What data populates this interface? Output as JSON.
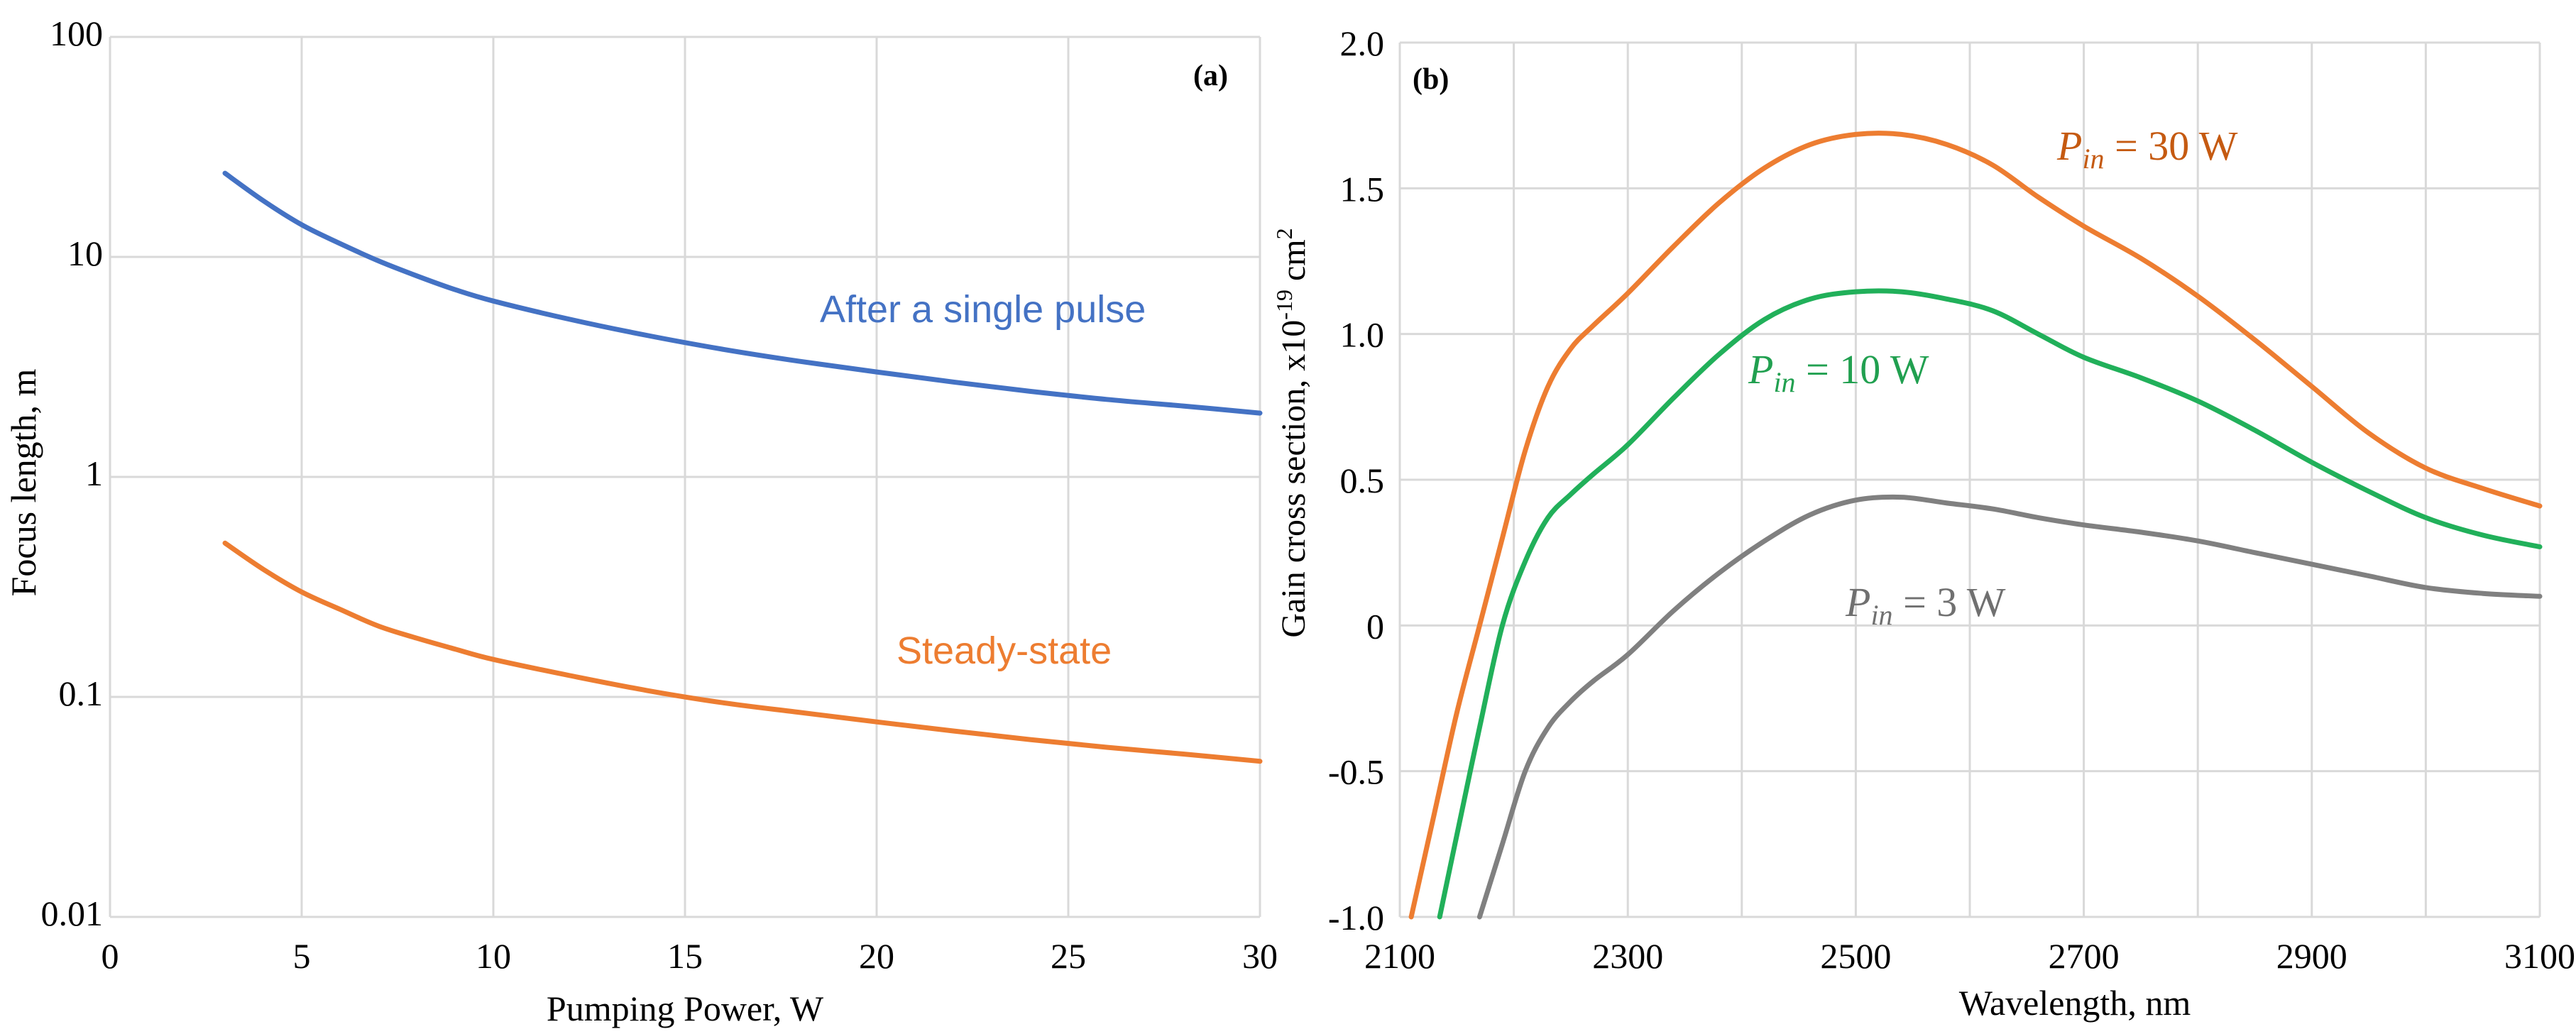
{
  "chart_data": [
    {
      "panel_label": "(a)",
      "type": "line",
      "xlabel": "Pumping Power, W",
      "ylabel": "Focus length, m",
      "xlim": [
        0,
        30
      ],
      "ylim": [
        0.01,
        100
      ],
      "yscale": "log",
      "x_ticks": [
        0,
        5,
        10,
        15,
        20,
        25,
        30
      ],
      "x_tick_labels": [
        "0",
        "5",
        "10",
        "15",
        "20",
        "25",
        "30"
      ],
      "y_ticks": [
        0.01,
        0.1,
        1,
        10,
        100
      ],
      "y_tick_labels": [
        "0.01",
        "0.1",
        "1",
        "10",
        "100"
      ],
      "grid": true,
      "series": [
        {
          "label": "After a single pulse",
          "color": "#4472C4",
          "x": [
            3,
            4,
            5,
            6,
            7,
            8,
            9,
            10,
            12,
            14,
            16,
            18,
            20,
            22,
            24,
            26,
            28,
            30
          ],
          "y": [
            24,
            18,
            14,
            11.5,
            9.6,
            8.2,
            7.1,
            6.3,
            5.2,
            4.4,
            3.8,
            3.35,
            3.0,
            2.7,
            2.45,
            2.25,
            2.1,
            1.95
          ]
        },
        {
          "label": "Steady-state",
          "color": "#ED7D31",
          "x": [
            3,
            4,
            5,
            6,
            7,
            8,
            9,
            10,
            12,
            14,
            16,
            18,
            20,
            22,
            24,
            26,
            28,
            30
          ],
          "y": [
            0.5,
            0.38,
            0.3,
            0.25,
            0.21,
            0.185,
            0.165,
            0.148,
            0.125,
            0.107,
            0.094,
            0.085,
            0.077,
            0.07,
            0.064,
            0.059,
            0.055,
            0.051
          ]
        }
      ]
    },
    {
      "panel_label": "(b)",
      "type": "line",
      "xlabel": "Wavelength, nm",
      "ylabel_main": "Gain cross section, x10",
      "ylabel_sup_exp": "-19",
      "ylabel_unit": " cm",
      "ylabel_sup_unit": "2",
      "xlim": [
        2100,
        3100
      ],
      "ylim": [
        -1.0,
        2.0
      ],
      "x_ticks": [
        2100,
        2300,
        2500,
        2700,
        2900,
        3100
      ],
      "x_tick_labels": [
        "2100",
        "2300",
        "2500",
        "2700",
        "2900",
        "3100"
      ],
      "y_ticks": [
        -1.0,
        -0.5,
        0,
        0.5,
        1.0,
        1.5,
        2.0
      ],
      "y_tick_labels": [
        "-1.0",
        "-0.5",
        "0",
        "0.5",
        "1.0",
        "1.5",
        "2.0"
      ],
      "grid": true,
      "series": [
        {
          "label_P": "P",
          "label_sub": "in",
          "label_rest": " = 30 W",
          "color": "#ED7D31",
          "x": [
            2110,
            2130,
            2150,
            2170,
            2190,
            2210,
            2230,
            2250,
            2270,
            2300,
            2340,
            2380,
            2420,
            2460,
            2500,
            2540,
            2580,
            2620,
            2660,
            2700,
            2750,
            2800,
            2850,
            2900,
            2950,
            3000,
            3050,
            3100
          ],
          "y": [
            -1.0,
            -0.65,
            -0.3,
            0.0,
            0.3,
            0.6,
            0.82,
            0.95,
            1.03,
            1.14,
            1.3,
            1.45,
            1.57,
            1.65,
            1.685,
            1.685,
            1.65,
            1.58,
            1.47,
            1.37,
            1.26,
            1.13,
            0.98,
            0.82,
            0.66,
            0.54,
            0.47,
            0.41
          ]
        },
        {
          "label_P": "P",
          "label_sub": "in",
          "label_rest": " = 10 W",
          "color": "#21B05A",
          "x": [
            2135,
            2150,
            2170,
            2190,
            2210,
            2230,
            2250,
            2270,
            2300,
            2340,
            2380,
            2420,
            2460,
            2500,
            2540,
            2580,
            2620,
            2660,
            2700,
            2750,
            2800,
            2850,
            2900,
            2950,
            3000,
            3050,
            3100
          ],
          "y": [
            -1.0,
            -0.72,
            -0.35,
            0.0,
            0.22,
            0.37,
            0.45,
            0.52,
            0.62,
            0.78,
            0.93,
            1.05,
            1.12,
            1.145,
            1.145,
            1.12,
            1.08,
            1.0,
            0.92,
            0.85,
            0.77,
            0.67,
            0.56,
            0.46,
            0.37,
            0.31,
            0.27
          ]
        },
        {
          "label_P": "P",
          "label_sub": "in",
          "label_rest": " = 3 W",
          "color": "#808080",
          "x": [
            2170,
            2190,
            2210,
            2230,
            2250,
            2270,
            2300,
            2340,
            2380,
            2420,
            2460,
            2500,
            2540,
            2580,
            2620,
            2660,
            2700,
            2750,
            2800,
            2850,
            2900,
            2950,
            3000,
            3050,
            3100
          ],
          "y": [
            -1.0,
            -0.75,
            -0.5,
            -0.35,
            -0.26,
            -0.19,
            -0.1,
            0.05,
            0.18,
            0.29,
            0.38,
            0.43,
            0.44,
            0.42,
            0.4,
            0.37,
            0.345,
            0.32,
            0.29,
            0.25,
            0.21,
            0.17,
            0.13,
            0.11,
            0.1
          ]
        }
      ]
    }
  ]
}
